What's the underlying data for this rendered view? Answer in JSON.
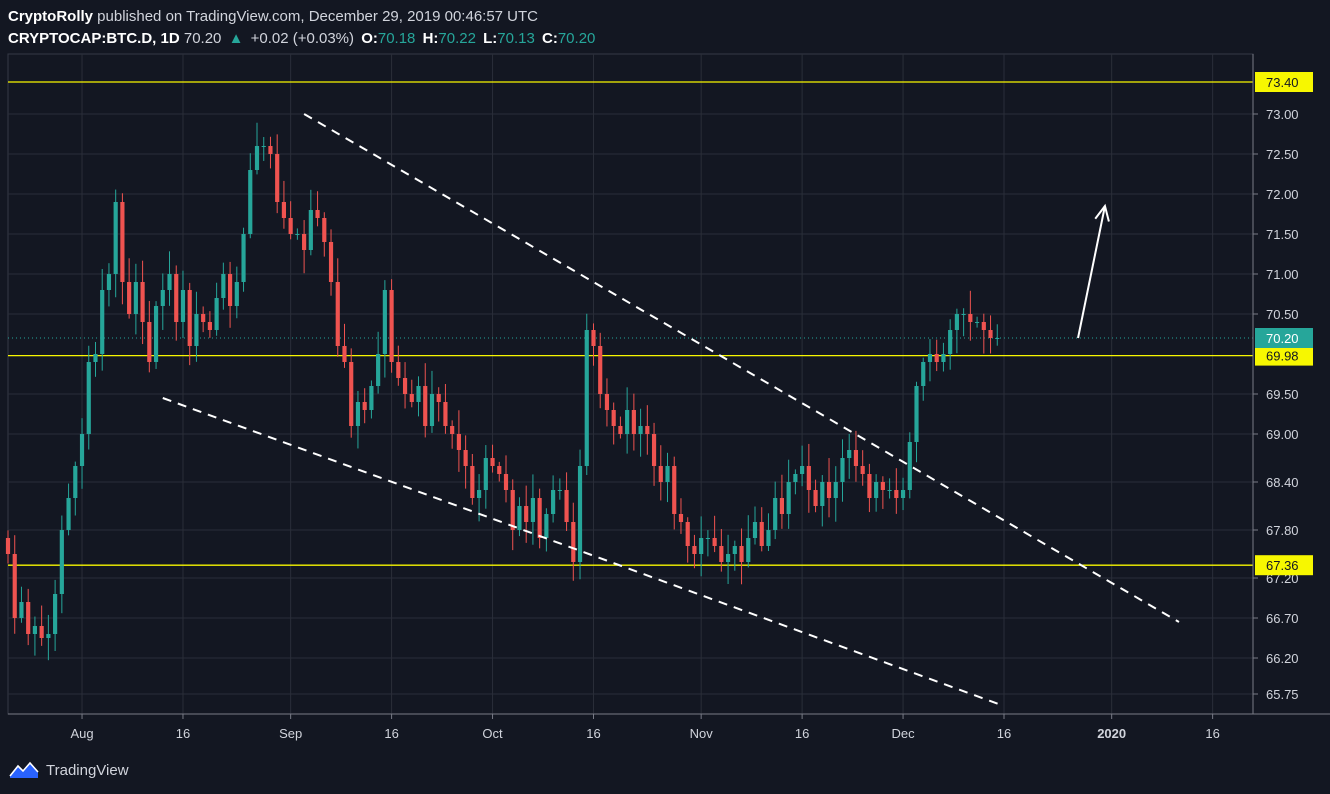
{
  "header": {
    "author": "CryptoRolly",
    "published_text": " published on TradingView.com, December 29, 2019 00:46:57 UTC",
    "symbol": "CRYPTOCAP:BTC.D, 1D",
    "last": "70.20",
    "change": "+0.02 (+0.03%)",
    "o_label": "O:",
    "o_value": "70.18",
    "h_label": "H:",
    "h_value": "70.22",
    "l_label": "L:",
    "l_value": "70.13",
    "c_label": "C:",
    "c_value": "70.20"
  },
  "footer": {
    "brand": "TradingView"
  },
  "colors": {
    "background": "#131722",
    "grid": "#2a2e39",
    "up": "#26a69a",
    "down": "#ef5350",
    "level": "#f7f700",
    "current": "#26a69a"
  },
  "chart_data": {
    "type": "candlestick",
    "symbol": "CRYPTOCAP:BTC.D",
    "interval": "1D",
    "y_range": [
      65.5,
      73.75
    ],
    "x_range": [
      "2019-07-21",
      "2020-01-22"
    ],
    "y_ticks": [
      "73.00",
      "72.50",
      "72.00",
      "71.50",
      "71.00",
      "70.50",
      "69.50",
      "69.00",
      "68.40",
      "67.80",
      "67.20",
      "66.70",
      "66.20",
      "65.75"
    ],
    "x_ticks": [
      {
        "date": "2019-08-01",
        "label": "Aug"
      },
      {
        "date": "2019-08-16",
        "label": "16"
      },
      {
        "date": "2019-09-01",
        "label": "Sep"
      },
      {
        "date": "2019-09-16",
        "label": "16"
      },
      {
        "date": "2019-10-01",
        "label": "Oct"
      },
      {
        "date": "2019-10-16",
        "label": "16"
      },
      {
        "date": "2019-11-01",
        "label": "Nov"
      },
      {
        "date": "2019-11-16",
        "label": "16"
      },
      {
        "date": "2019-12-01",
        "label": "Dec"
      },
      {
        "date": "2019-12-16",
        "label": "16"
      },
      {
        "date": "2020-01-01",
        "label": "2020"
      },
      {
        "date": "2020-01-16",
        "label": "16"
      }
    ],
    "horizontal_levels": [
      {
        "value": 73.4,
        "label": "73.40"
      },
      {
        "value": 69.98,
        "label": "69.98"
      },
      {
        "value": 67.36,
        "label": "67.36"
      }
    ],
    "current_price": {
      "value": 70.2,
      "label": "70.20"
    },
    "trendlines": [
      {
        "from": [
          "2019-09-03",
          73.0
        ],
        "to": [
          "2020-01-11",
          66.65
        ],
        "style": "dashed"
      },
      {
        "from": [
          "2019-08-13",
          69.45
        ],
        "to": [
          "2019-12-16",
          65.6
        ],
        "style": "dashed"
      }
    ],
    "arrow": {
      "from": [
        "2019-12-27",
        70.2
      ],
      "to": [
        "2019-12-31",
        71.85
      ]
    },
    "candles_start_date": "2019-07-21",
    "closes": [
      67.5,
      66.7,
      66.9,
      66.5,
      66.6,
      66.45,
      66.5,
      67.0,
      67.8,
      68.2,
      68.6,
      69.0,
      69.9,
      70.0,
      70.8,
      71.0,
      71.9,
      70.9,
      70.5,
      70.9,
      70.4,
      69.9,
      70.6,
      70.8,
      71.0,
      70.4,
      70.8,
      70.1,
      70.5,
      70.4,
      70.3,
      70.7,
      71.0,
      70.6,
      70.9,
      71.5,
      72.3,
      72.6,
      72.6,
      72.5,
      71.9,
      71.7,
      71.5,
      71.5,
      71.3,
      71.8,
      71.7,
      71.4,
      70.9,
      70.1,
      69.9,
      69.1,
      69.4,
      69.3,
      69.6,
      70.0,
      70.8,
      69.9,
      69.7,
      69.5,
      69.4,
      69.6,
      69.1,
      69.5,
      69.4,
      69.1,
      69.0,
      68.8,
      68.6,
      68.2,
      68.3,
      68.7,
      68.6,
      68.5,
      68.3,
      67.8,
      68.1,
      67.9,
      68.2,
      67.7,
      68.0,
      68.3,
      68.3,
      67.9,
      67.4,
      68.6,
      70.3,
      70.1,
      69.5,
      69.3,
      69.1,
      69.0,
      69.3,
      69.0,
      69.1,
      69.0,
      68.6,
      68.4,
      68.6,
      68.0,
      67.9,
      67.6,
      67.5,
      67.7,
      67.7,
      67.6,
      67.4,
      67.5,
      67.6,
      67.4,
      67.7,
      67.9,
      67.6,
      67.8,
      68.2,
      68.0,
      68.4,
      68.5,
      68.6,
      68.3,
      68.1,
      68.4,
      68.2,
      68.4,
      68.7,
      68.8,
      68.6,
      68.5,
      68.2,
      68.4,
      68.3,
      68.3,
      68.2,
      68.3,
      68.9,
      69.6,
      69.9,
      70.0,
      69.9,
      70.0,
      70.3,
      70.5,
      70.5,
      70.4,
      70.4,
      70.3,
      70.2,
      70.2
    ]
  }
}
